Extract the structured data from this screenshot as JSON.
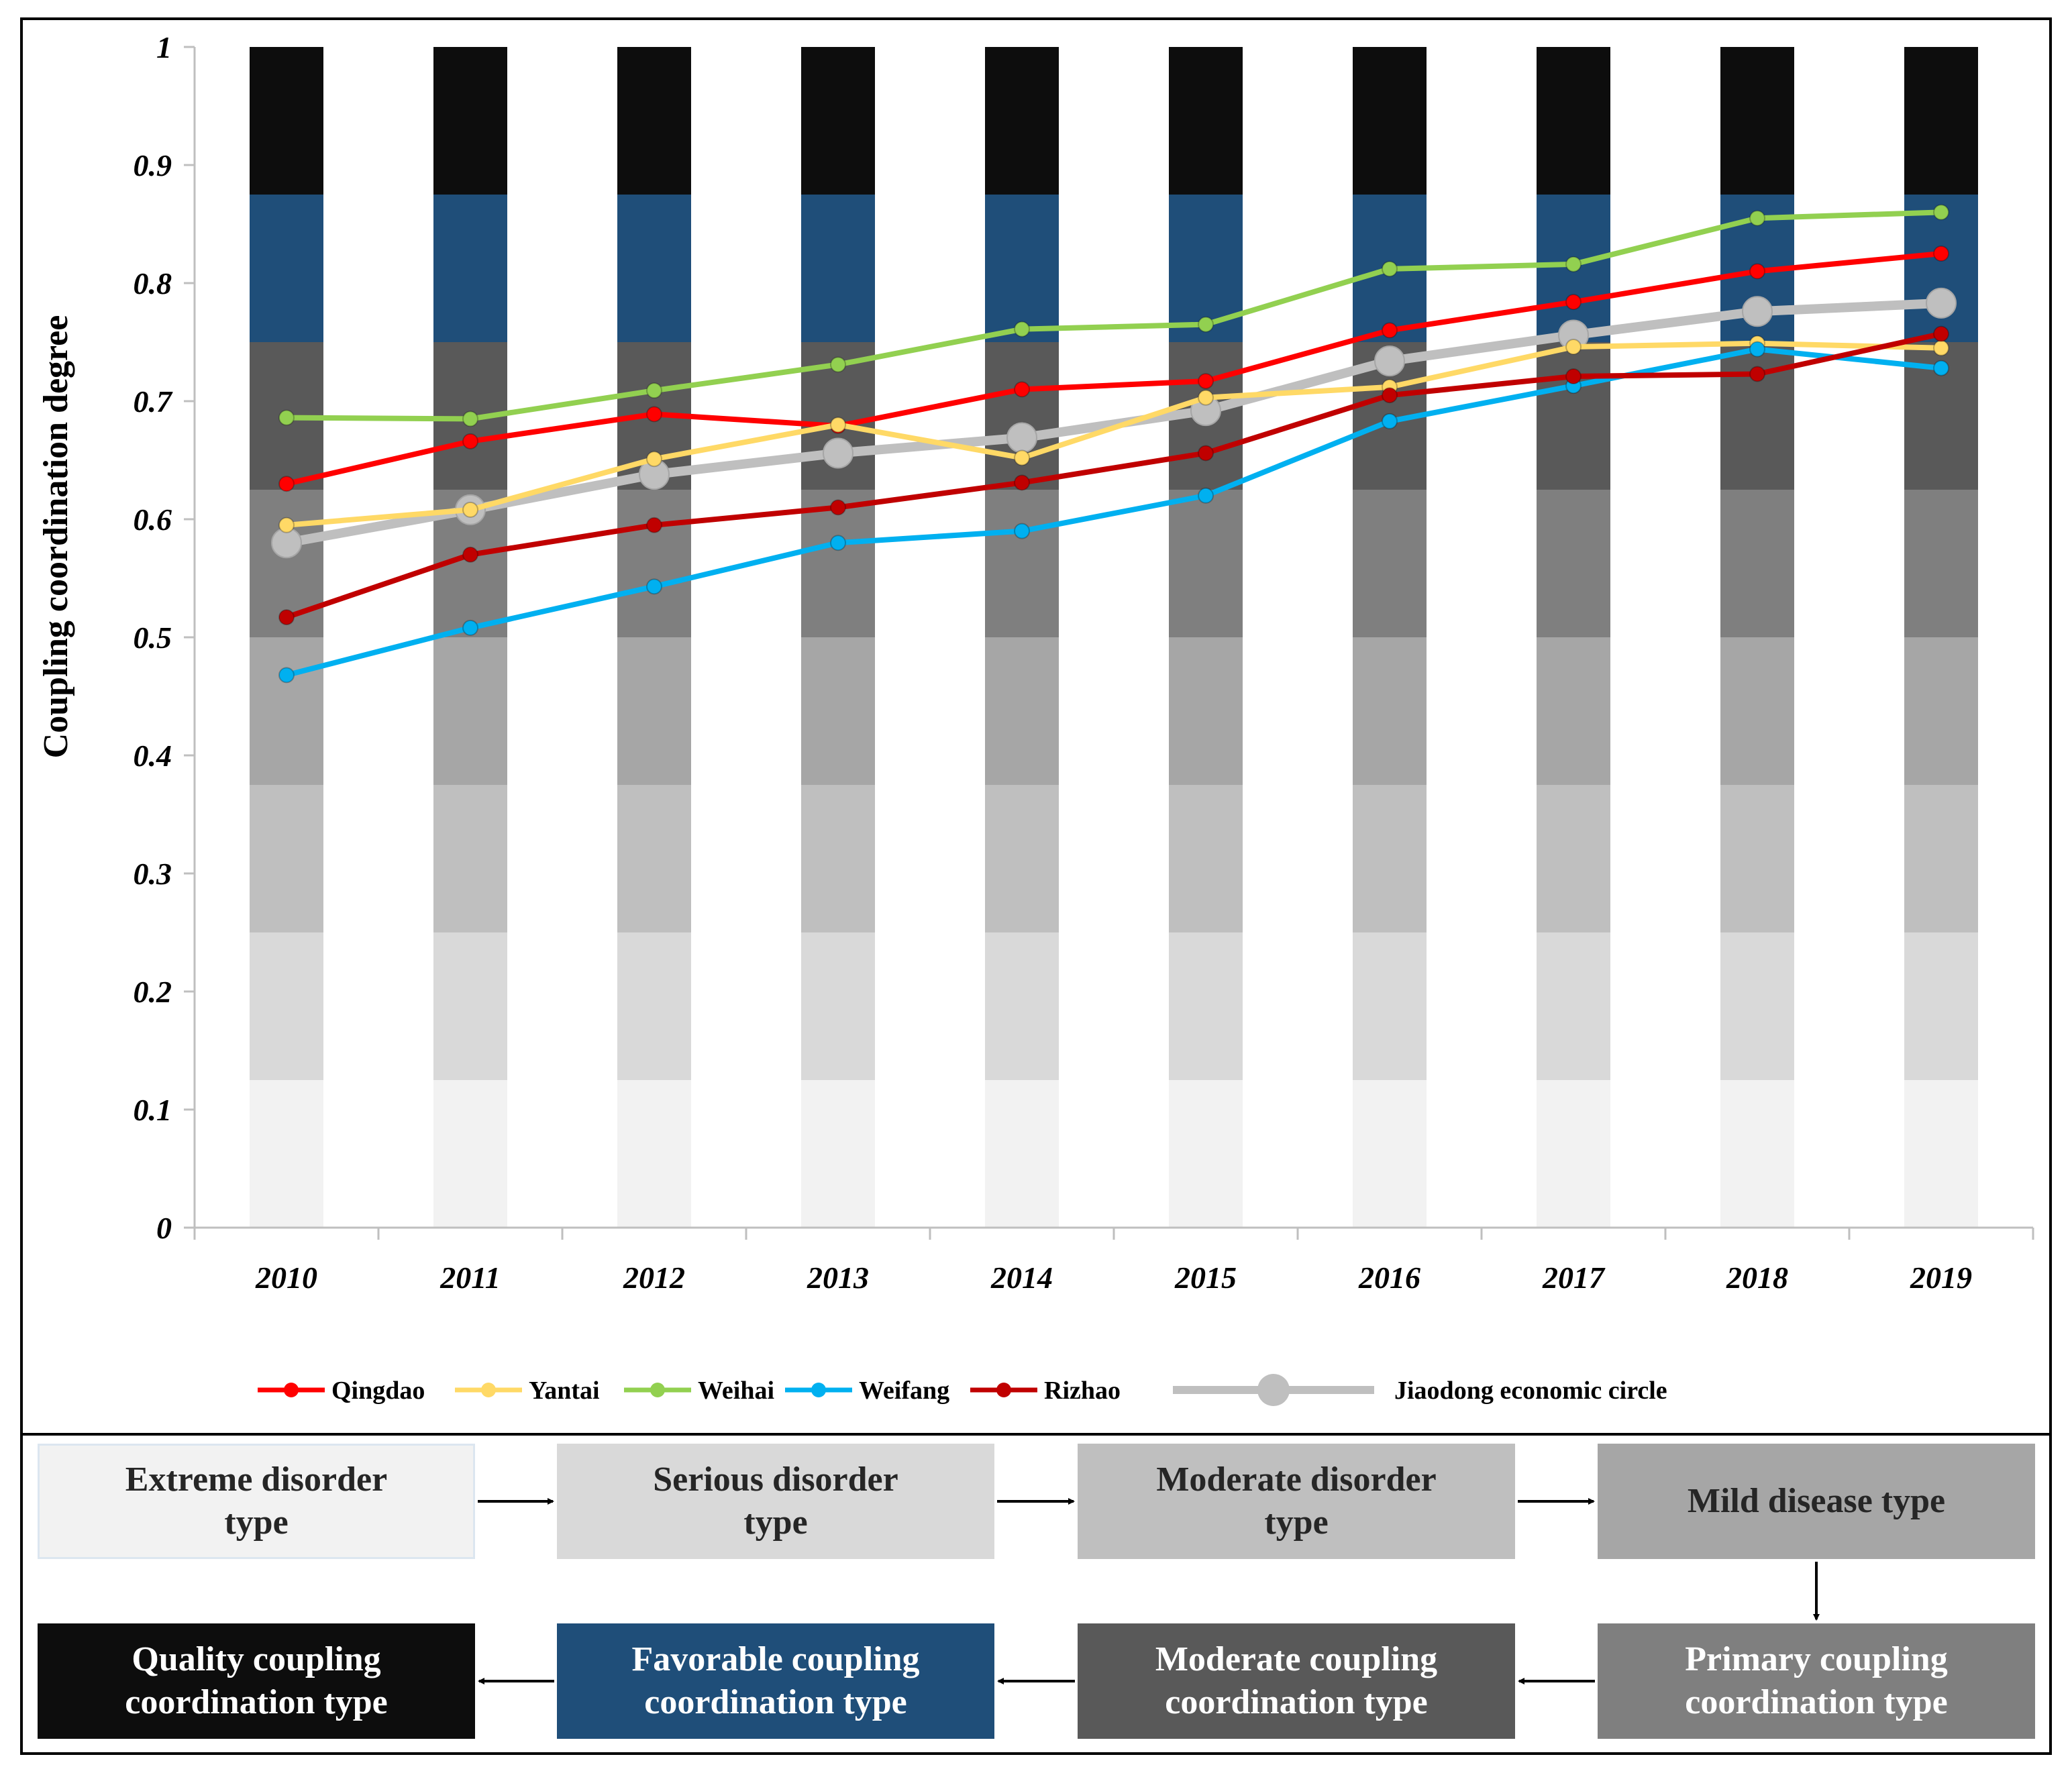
{
  "chart_data": {
    "type": "line",
    "ylabel": "Coupling coordination degree",
    "xlabel": "",
    "ylim": [
      0,
      1
    ],
    "yticks": [
      "0",
      "0.1",
      "0.2",
      "0.3",
      "0.4",
      "0.5",
      "0.6",
      "0.7",
      "0.8",
      "0.9",
      "1"
    ],
    "categories": [
      "2010",
      "2011",
      "2012",
      "2013",
      "2014",
      "2015",
      "2016",
      "2017",
      "2018",
      "2019"
    ],
    "background_bands": {
      "boundaries": [
        0,
        0.125,
        0.25,
        0.375,
        0.5,
        0.625,
        0.75,
        0.875,
        1
      ],
      "colors": [
        "#f2f2f2",
        "#d9d9d9",
        "#bfbfbf",
        "#a6a6a6",
        "#7f7f7f",
        "#595959",
        "#1f4e79",
        "#0d0d0d"
      ]
    },
    "legend_position": "bottom",
    "series": [
      {
        "name": "Qingdao",
        "color": "#ff0000",
        "values": [
          0.63,
          0.666,
          0.689,
          0.679,
          0.71,
          0.717,
          0.76,
          0.784,
          0.81,
          0.825
        ]
      },
      {
        "name": "Yantai",
        "color": "#ffd966",
        "values": [
          0.595,
          0.608,
          0.651,
          0.68,
          0.652,
          0.703,
          0.712,
          0.746,
          0.749,
          0.745
        ]
      },
      {
        "name": "Weihai",
        "color": "#92d050",
        "values": [
          0.686,
          0.685,
          0.709,
          0.731,
          0.761,
          0.765,
          0.812,
          0.816,
          0.855,
          0.86
        ]
      },
      {
        "name": "Weifang",
        "color": "#00b0f0",
        "values": [
          0.468,
          0.508,
          0.543,
          0.58,
          0.59,
          0.62,
          0.683,
          0.713,
          0.744,
          0.728
        ]
      },
      {
        "name": "Rizhao",
        "color": "#c00000",
        "values": [
          0.517,
          0.57,
          0.595,
          0.61,
          0.631,
          0.656,
          0.705,
          0.721,
          0.723,
          0.757
        ]
      },
      {
        "name": "Jiaodong economic circle",
        "color": "#bfbfbf",
        "values": [
          0.58,
          0.608,
          0.638,
          0.656,
          0.669,
          0.692,
          0.734,
          0.756,
          0.776,
          0.783
        ]
      }
    ]
  },
  "flow": {
    "row1": [
      {
        "line1": "Extreme disorder",
        "line2": "type",
        "bg": "#f2f2f2",
        "fg": "#262626"
      },
      {
        "line1": "Serious disorder",
        "line2": "type",
        "bg": "#d9d9d9",
        "fg": "#262626"
      },
      {
        "line1": "Moderate disorder",
        "line2": "type",
        "bg": "#bfbfbf",
        "fg": "#262626"
      },
      {
        "line1": "Mild disease type",
        "line2": "",
        "bg": "#a6a6a6",
        "fg": "#262626"
      }
    ],
    "row2": [
      {
        "line1": "Quality coupling",
        "line2": "coordination type",
        "bg": "#0d0d0d",
        "fg": "#ffffff"
      },
      {
        "line1": "Favorable coupling",
        "line2": "coordination type",
        "bg": "#1f4e79",
        "fg": "#ffffff"
      },
      {
        "line1": "Moderate coupling",
        "line2": "coordination type",
        "bg": "#595959",
        "fg": "#ffffff"
      },
      {
        "line1": "Primary coupling",
        "line2": "coordination type",
        "bg": "#7f7f7f",
        "fg": "#ffffff"
      }
    ]
  }
}
